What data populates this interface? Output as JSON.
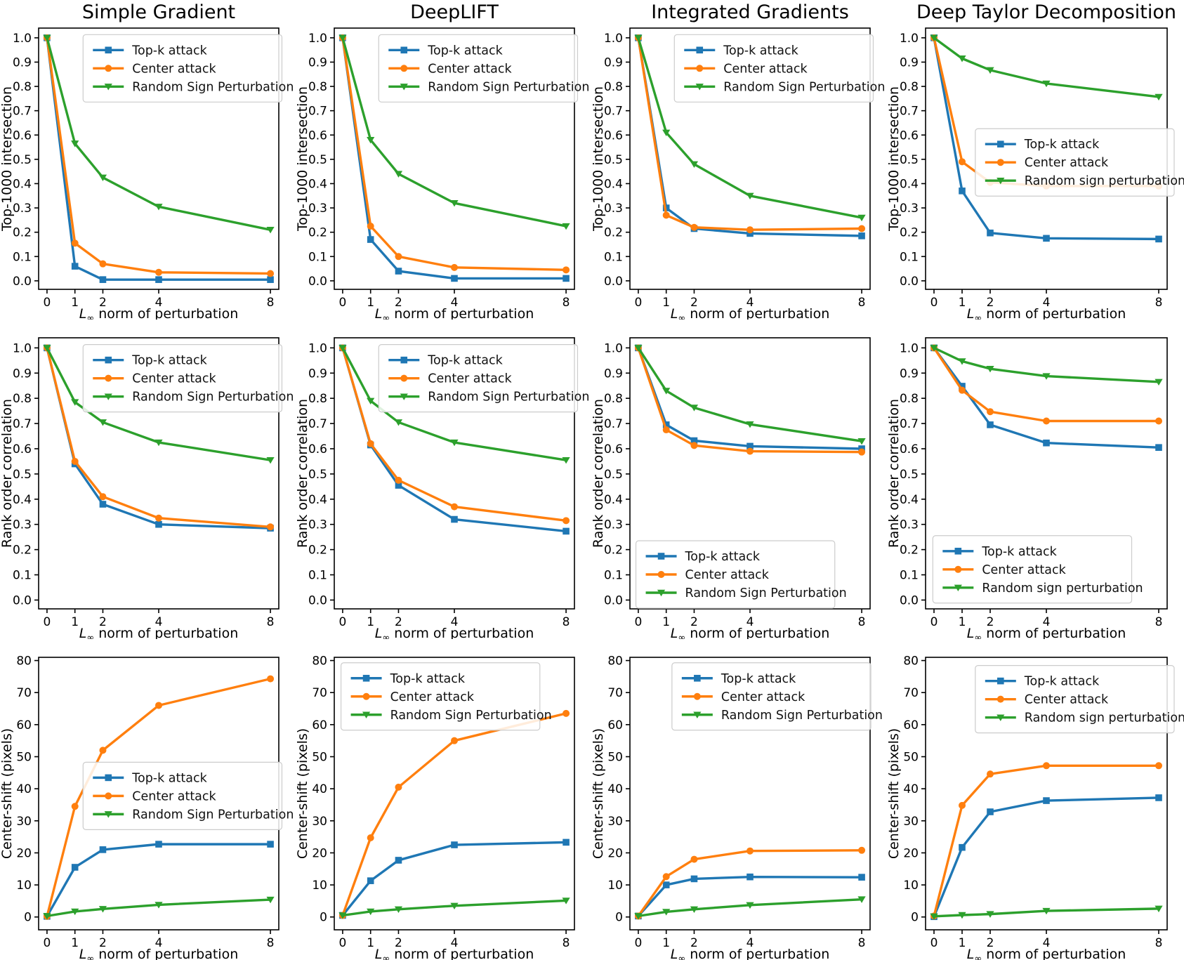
{
  "figure": {
    "background": "#ffffff",
    "column_titles": [
      "Simple Gradient",
      "DeepLIFT",
      "Integrated Gradients",
      "Deep Taylor Decomposition"
    ],
    "row_ylabels": [
      "Top-1000 intersection",
      "Rank order correlation",
      "Center-shift (pixels)"
    ],
    "xlabel": "L∞ norm of perturbation",
    "series_colors": {
      "topk": "#1f77b4",
      "center": "#ff7f0e",
      "random": "#2ca02c"
    }
  },
  "chart_data": [
    {
      "name": "simple-gradient-top1000-intersection",
      "type": "line",
      "title": "Simple Gradient",
      "xlabel": "L∞ norm of perturbation",
      "ylabel": "Top-1000 intersection",
      "x": [
        0,
        1,
        2,
        4,
        8
      ],
      "xticks": [
        0,
        1,
        2,
        4,
        8
      ],
      "xlim": [
        -0.3,
        8.3
      ],
      "ylim": [
        -0.035,
        1.04
      ],
      "yticks": [
        0.0,
        0.1,
        0.2,
        0.3,
        0.4,
        0.5,
        0.6,
        0.7,
        0.8,
        0.9,
        1.0
      ],
      "ytick_decimals": 1,
      "grid": false,
      "legend_pos": {
        "x": 0.185,
        "y": 0.025
      },
      "series": [
        {
          "name": "Top-k attack",
          "color": "#1f77b4",
          "marker": "square",
          "values": [
            1.0,
            0.06,
            0.005,
            0.005,
            0.005
          ]
        },
        {
          "name": "Center attack",
          "color": "#ff7f0e",
          "marker": "circle",
          "values": [
            1.0,
            0.155,
            0.07,
            0.035,
            0.03
          ]
        },
        {
          "name": "Random Sign Perturbation",
          "color": "#2ca02c",
          "marker": "triangle-down",
          "values": [
            1.0,
            0.565,
            0.425,
            0.305,
            0.21
          ]
        }
      ]
    },
    {
      "name": "deeplift-top1000-intersection",
      "type": "line",
      "title": "DeepLIFT",
      "xlabel": "L∞ norm of perturbation",
      "ylabel": "Top-1000 intersection",
      "x": [
        0,
        1,
        2,
        4,
        8
      ],
      "xticks": [
        0,
        1,
        2,
        4,
        8
      ],
      "xlim": [
        -0.3,
        8.3
      ],
      "ylim": [
        -0.035,
        1.04
      ],
      "yticks": [
        0.0,
        0.1,
        0.2,
        0.3,
        0.4,
        0.5,
        0.6,
        0.7,
        0.8,
        0.9,
        1.0
      ],
      "ytick_decimals": 1,
      "grid": false,
      "legend_pos": {
        "x": 0.185,
        "y": 0.025
      },
      "series": [
        {
          "name": "Top-k attack",
          "color": "#1f77b4",
          "marker": "square",
          "values": [
            1.0,
            0.17,
            0.04,
            0.01,
            0.01
          ]
        },
        {
          "name": "Center attack",
          "color": "#ff7f0e",
          "marker": "circle",
          "values": [
            1.0,
            0.225,
            0.1,
            0.055,
            0.045
          ]
        },
        {
          "name": "Random Sign Perturbation",
          "color": "#2ca02c",
          "marker": "triangle-down",
          "values": [
            1.0,
            0.58,
            0.44,
            0.32,
            0.225
          ]
        }
      ]
    },
    {
      "name": "integrated-gradients-top1000-intersection",
      "type": "line",
      "title": "Integrated Gradients",
      "xlabel": "L∞ norm of perturbation",
      "ylabel": "Top-1000 intersection",
      "x": [
        0,
        1,
        2,
        4,
        8
      ],
      "xticks": [
        0,
        1,
        2,
        4,
        8
      ],
      "xlim": [
        -0.3,
        8.3
      ],
      "ylim": [
        -0.035,
        1.04
      ],
      "yticks": [
        0.0,
        0.1,
        0.2,
        0.3,
        0.4,
        0.5,
        0.6,
        0.7,
        0.8,
        0.9,
        1.0
      ],
      "ytick_decimals": 1,
      "grid": false,
      "legend_pos": {
        "x": 0.185,
        "y": 0.025
      },
      "series": [
        {
          "name": "Top-k attack",
          "color": "#1f77b4",
          "marker": "square",
          "values": [
            1.0,
            0.3,
            0.215,
            0.195,
            0.185
          ]
        },
        {
          "name": "Center attack",
          "color": "#ff7f0e",
          "marker": "circle",
          "values": [
            1.0,
            0.27,
            0.22,
            0.21,
            0.215
          ]
        },
        {
          "name": "Random Sign Perturbation",
          "color": "#2ca02c",
          "marker": "triangle-down",
          "values": [
            1.0,
            0.61,
            0.48,
            0.35,
            0.26
          ]
        }
      ]
    },
    {
      "name": "deep-taylor-top1000-intersection",
      "type": "line",
      "title": "Deep Taylor Decomposition",
      "xlabel": "L∞ norm of perturbation",
      "ylabel": "Top-1000 intersection",
      "x": [
        0,
        1,
        2,
        4,
        8
      ],
      "xticks": [
        0,
        1,
        2,
        4,
        8
      ],
      "xlim": [
        -0.3,
        8.3
      ],
      "ylim": [
        -0.035,
        1.04
      ],
      "yticks": [
        0.0,
        0.1,
        0.2,
        0.3,
        0.4,
        0.5,
        0.6,
        0.7,
        0.8,
        0.9,
        1.0
      ],
      "ytick_decimals": 1,
      "grid": false,
      "legend_pos": {
        "x": 0.24,
        "y": 0.385
      },
      "series": [
        {
          "name": "Top-k attack",
          "color": "#1f77b4",
          "marker": "square",
          "values": [
            1.0,
            0.37,
            0.197,
            0.175,
            0.172
          ]
        },
        {
          "name": "Center attack",
          "color": "#ff7f0e",
          "marker": "circle",
          "values": [
            1.0,
            0.49,
            0.405,
            0.39,
            0.39
          ]
        },
        {
          "name": "Random sign perturbation",
          "color": "#2ca02c",
          "marker": "triangle-down",
          "values": [
            1.0,
            0.915,
            0.867,
            0.812,
            0.757
          ]
        }
      ]
    },
    {
      "name": "simple-gradient-rank-order-correlation",
      "type": "line",
      "title": "",
      "xlabel": "L∞ norm of perturbation",
      "ylabel": "Rank order correlation",
      "x": [
        0,
        1,
        2,
        4,
        8
      ],
      "xticks": [
        0,
        1,
        2,
        4,
        8
      ],
      "xlim": [
        -0.3,
        8.3
      ],
      "ylim": [
        -0.035,
        1.04
      ],
      "yticks": [
        0.0,
        0.1,
        0.2,
        0.3,
        0.4,
        0.5,
        0.6,
        0.7,
        0.8,
        0.9,
        1.0
      ],
      "ytick_decimals": 1,
      "grid": false,
      "legend_pos": {
        "x": 0.185,
        "y": 0.025
      },
      "series": [
        {
          "name": "Top-k attack",
          "color": "#1f77b4",
          "marker": "square",
          "values": [
            1.0,
            0.54,
            0.38,
            0.3,
            0.285
          ]
        },
        {
          "name": "Center attack",
          "color": "#ff7f0e",
          "marker": "circle",
          "values": [
            1.0,
            0.55,
            0.41,
            0.325,
            0.29
          ]
        },
        {
          "name": "Random Sign Perturbation",
          "color": "#2ca02c",
          "marker": "triangle-down",
          "values": [
            1.0,
            0.785,
            0.705,
            0.625,
            0.555
          ]
        }
      ]
    },
    {
      "name": "deeplift-rank-order-correlation",
      "type": "line",
      "title": "",
      "xlabel": "L∞ norm of perturbation",
      "ylabel": "Rank order correlation",
      "x": [
        0,
        1,
        2,
        4,
        8
      ],
      "xticks": [
        0,
        1,
        2,
        4,
        8
      ],
      "xlim": [
        -0.3,
        8.3
      ],
      "ylim": [
        -0.035,
        1.04
      ],
      "yticks": [
        0.0,
        0.1,
        0.2,
        0.3,
        0.4,
        0.5,
        0.6,
        0.7,
        0.8,
        0.9,
        1.0
      ],
      "ytick_decimals": 1,
      "grid": false,
      "legend_pos": {
        "x": 0.185,
        "y": 0.025
      },
      "series": [
        {
          "name": "Top-k attack",
          "color": "#1f77b4",
          "marker": "square",
          "values": [
            1.0,
            0.615,
            0.455,
            0.32,
            0.273
          ]
        },
        {
          "name": "Center attack",
          "color": "#ff7f0e",
          "marker": "circle",
          "values": [
            1.0,
            0.62,
            0.475,
            0.37,
            0.315
          ]
        },
        {
          "name": "Random Sign Perturbation",
          "color": "#2ca02c",
          "marker": "triangle-down",
          "values": [
            1.0,
            0.79,
            0.705,
            0.625,
            0.555
          ]
        }
      ]
    },
    {
      "name": "integrated-gradients-rank-order-correlation",
      "type": "line",
      "title": "",
      "xlabel": "L∞ norm of perturbation",
      "ylabel": "Rank order correlation",
      "x": [
        0,
        1,
        2,
        4,
        8
      ],
      "xticks": [
        0,
        1,
        2,
        4,
        8
      ],
      "xlim": [
        -0.3,
        8.3
      ],
      "ylim": [
        -0.035,
        1.04
      ],
      "yticks": [
        0.0,
        0.1,
        0.2,
        0.3,
        0.4,
        0.5,
        0.6,
        0.7,
        0.8,
        0.9,
        1.0
      ],
      "ytick_decimals": 1,
      "grid": false,
      "legend_pos": {
        "x": 0.025,
        "y": 0.76
      },
      "series": [
        {
          "name": "Top-k attack",
          "color": "#1f77b4",
          "marker": "square",
          "values": [
            1.0,
            0.695,
            0.632,
            0.61,
            0.6
          ]
        },
        {
          "name": "Center attack",
          "color": "#ff7f0e",
          "marker": "circle",
          "values": [
            1.0,
            0.675,
            0.613,
            0.59,
            0.587
          ]
        },
        {
          "name": "Random Sign Perturbation",
          "color": "#2ca02c",
          "marker": "triangle-down",
          "values": [
            1.0,
            0.83,
            0.763,
            0.697,
            0.63
          ]
        }
      ]
    },
    {
      "name": "deep-taylor-rank-order-correlation",
      "type": "line",
      "title": "",
      "xlabel": "L∞ norm of perturbation",
      "ylabel": "Rank order correlation",
      "x": [
        0,
        1,
        2,
        4,
        8
      ],
      "xticks": [
        0,
        1,
        2,
        4,
        8
      ],
      "xlim": [
        -0.3,
        8.3
      ],
      "ylim": [
        -0.035,
        1.04
      ],
      "yticks": [
        0.0,
        0.1,
        0.2,
        0.3,
        0.4,
        0.5,
        0.6,
        0.7,
        0.8,
        0.9,
        1.0
      ],
      "ytick_decimals": 1,
      "grid": false,
      "legend_pos": {
        "x": 0.03,
        "y": 0.73
      },
      "series": [
        {
          "name": "Top-k attack",
          "color": "#1f77b4",
          "marker": "square",
          "values": [
            1.0,
            0.848,
            0.695,
            0.623,
            0.605
          ]
        },
        {
          "name": "Center attack",
          "color": "#ff7f0e",
          "marker": "circle",
          "values": [
            1.0,
            0.832,
            0.747,
            0.71,
            0.71
          ]
        },
        {
          "name": "Random sign perturbation",
          "color": "#2ca02c",
          "marker": "triangle-down",
          "values": [
            1.0,
            0.947,
            0.917,
            0.888,
            0.865
          ]
        }
      ]
    },
    {
      "name": "simple-gradient-center-shift",
      "type": "line",
      "title": "",
      "xlabel": "L∞ norm of perturbation",
      "ylabel": "Center-shift (pixels)",
      "x": [
        0,
        1,
        2,
        4,
        8
      ],
      "xticks": [
        0,
        1,
        2,
        4,
        8
      ],
      "xlim": [
        -0.3,
        8.3
      ],
      "ylim": [
        -4,
        81
      ],
      "yticks": [
        0,
        10,
        20,
        30,
        40,
        50,
        60,
        70,
        80
      ],
      "ytick_decimals": 0,
      "grid": false,
      "legend_pos": {
        "x": 0.185,
        "y": 0.385
      },
      "series": [
        {
          "name": "Top-k attack",
          "color": "#1f77b4",
          "marker": "square",
          "values": [
            0.2,
            15.5,
            21.0,
            22.7,
            22.7
          ]
        },
        {
          "name": "Center attack",
          "color": "#ff7f0e",
          "marker": "circle",
          "values": [
            0.2,
            34.5,
            52.0,
            66.0,
            74.3
          ]
        },
        {
          "name": "Random Sign Perturbation",
          "color": "#2ca02c",
          "marker": "triangle-down",
          "values": [
            0.3,
            1.7,
            2.5,
            3.8,
            5.4
          ]
        }
      ]
    },
    {
      "name": "deeplift-center-shift",
      "type": "line",
      "title": "",
      "xlabel": "L∞ norm of perturbation",
      "ylabel": "Center-shift (pixels)",
      "x": [
        0,
        1,
        2,
        4,
        8
      ],
      "xticks": [
        0,
        1,
        2,
        4,
        8
      ],
      "xlim": [
        -0.3,
        8.3
      ],
      "ylim": [
        -4,
        81
      ],
      "yticks": [
        0,
        10,
        20,
        30,
        40,
        50,
        60,
        70,
        80
      ],
      "ytick_decimals": 0,
      "grid": false,
      "legend_pos": {
        "x": 0.028,
        "y": 0.02
      },
      "series": [
        {
          "name": "Top-k attack",
          "color": "#1f77b4",
          "marker": "square",
          "values": [
            0.5,
            11.3,
            17.7,
            22.5,
            23.3
          ]
        },
        {
          "name": "Center attack",
          "color": "#ff7f0e",
          "marker": "circle",
          "values": [
            0.5,
            24.7,
            40.5,
            55.0,
            63.5
          ]
        },
        {
          "name": "Random Sign Perturbation",
          "color": "#2ca02c",
          "marker": "triangle-down",
          "values": [
            0.5,
            1.7,
            2.4,
            3.5,
            5.1
          ]
        }
      ]
    },
    {
      "name": "integrated-gradients-center-shift",
      "type": "line",
      "title": "",
      "xlabel": "L∞ norm of perturbation",
      "ylabel": "Center-shift (pixels)",
      "x": [
        0,
        1,
        2,
        4,
        8
      ],
      "xticks": [
        0,
        1,
        2,
        4,
        8
      ],
      "xlim": [
        -0.3,
        8.3
      ],
      "ylim": [
        -4,
        81
      ],
      "yticks": [
        0,
        10,
        20,
        30,
        40,
        50,
        60,
        70,
        80
      ],
      "ytick_decimals": 0,
      "grid": false,
      "legend_pos": {
        "x": 0.175,
        "y": 0.02
      },
      "series": [
        {
          "name": "Top-k attack",
          "color": "#1f77b4",
          "marker": "square",
          "values": [
            0.3,
            10.0,
            11.9,
            12.5,
            12.4
          ]
        },
        {
          "name": "Center attack",
          "color": "#ff7f0e",
          "marker": "circle",
          "values": [
            0.3,
            12.6,
            18.0,
            20.6,
            20.8
          ]
        },
        {
          "name": "Random Sign Perturbation",
          "color": "#2ca02c",
          "marker": "triangle-down",
          "values": [
            0.3,
            1.6,
            2.4,
            3.7,
            5.5
          ]
        }
      ]
    },
    {
      "name": "deep-taylor-center-shift",
      "type": "line",
      "title": "",
      "xlabel": "L∞ norm of perturbation",
      "ylabel": "Center-shift (pixels)",
      "x": [
        0,
        1,
        2,
        4,
        8
      ],
      "xticks": [
        0,
        1,
        2,
        4,
        8
      ],
      "xlim": [
        -0.3,
        8.3
      ],
      "ylim": [
        -4,
        81
      ],
      "yticks": [
        0,
        10,
        20,
        30,
        40,
        50,
        60,
        70,
        80
      ],
      "ytick_decimals": 0,
      "grid": false,
      "legend_pos": {
        "x": 0.22,
        "y": 0.03
      },
      "series": [
        {
          "name": "Top-k attack",
          "color": "#1f77b4",
          "marker": "square",
          "values": [
            0.1,
            21.7,
            32.8,
            36.3,
            37.2
          ]
        },
        {
          "name": "Center attack",
          "color": "#ff7f0e",
          "marker": "circle",
          "values": [
            0.3,
            34.8,
            44.6,
            47.2,
            47.2
          ]
        },
        {
          "name": "Random sign perturbation",
          "color": "#2ca02c",
          "marker": "triangle-down",
          "values": [
            0.2,
            0.6,
            0.9,
            1.9,
            2.6
          ]
        }
      ]
    }
  ]
}
